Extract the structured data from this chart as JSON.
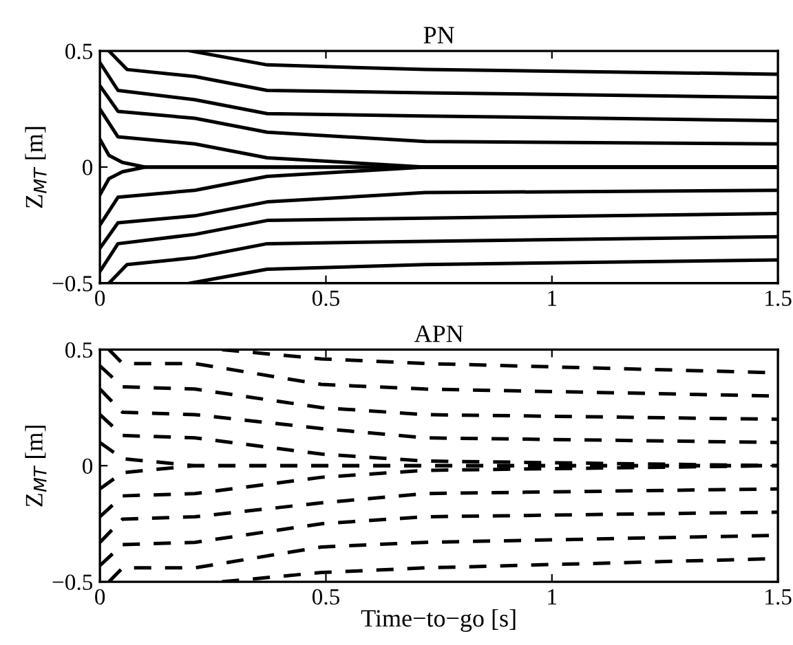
{
  "chart_data": [
    {
      "type": "line",
      "title": "PN",
      "ylabel": "Z$_{MT}$ [m]",
      "line_style": "solid",
      "xlim": [
        0,
        1.5
      ],
      "ylim": [
        -0.5,
        0.5
      ],
      "xticks": [
        0,
        0.5,
        1,
        1.5
      ],
      "yticks": [
        {
          "value": -0.5,
          "label": "−0.5"
        },
        0,
        0.5
      ],
      "grid": false,
      "series": [
        {
          "color": "#000000",
          "x": [
            0.2,
            0.37,
            0.72,
            1.5
          ],
          "values": [
            0.5,
            0.44,
            0.42,
            0.4
          ]
        },
        {
          "color": "#000000",
          "x": [
            0.02,
            0.06,
            0.21,
            0.37,
            0.72,
            1.5
          ],
          "values": [
            0.5,
            0.42,
            0.39,
            0.33,
            0.32,
            0.3
          ]
        },
        {
          "color": "#000000",
          "x": [
            0,
            0.04,
            0.21,
            0.37,
            0.72,
            1.5
          ],
          "values": [
            0.45,
            0.33,
            0.29,
            0.23,
            0.22,
            0.2
          ]
        },
        {
          "color": "#000000",
          "x": [
            0,
            0.04,
            0.21,
            0.37,
            0.72,
            1.5
          ],
          "values": [
            0.35,
            0.24,
            0.21,
            0.15,
            0.11,
            0.1
          ]
        },
        {
          "color": "#000000",
          "x": [
            0,
            0.04,
            0.21,
            0.37,
            0.72,
            1.5
          ],
          "values": [
            0.25,
            0.13,
            0.1,
            0.04,
            0.0,
            0.0
          ]
        },
        {
          "color": "#000000",
          "x": [
            0,
            0.02,
            0.05,
            0.1,
            1.5
          ],
          "values": [
            0.12,
            0.05,
            0.02,
            0,
            0
          ]
        },
        {
          "color": "#000000",
          "x": [
            0,
            0.02,
            0.05,
            0.1,
            1.5
          ],
          "values": [
            -0.12,
            -0.05,
            -0.02,
            0,
            0
          ]
        },
        {
          "color": "#000000",
          "x": [
            0,
            0.04,
            0.21,
            0.37,
            0.72,
            1.5
          ],
          "values": [
            -0.25,
            -0.13,
            -0.1,
            -0.04,
            0.0,
            0.0
          ]
        },
        {
          "color": "#000000",
          "x": [
            0,
            0.04,
            0.21,
            0.37,
            0.72,
            1.5
          ],
          "values": [
            -0.35,
            -0.24,
            -0.21,
            -0.15,
            -0.11,
            -0.1
          ]
        },
        {
          "color": "#000000",
          "x": [
            0,
            0.04,
            0.21,
            0.37,
            0.72,
            1.5
          ],
          "values": [
            -0.45,
            -0.33,
            -0.29,
            -0.23,
            -0.22,
            -0.2
          ]
        },
        {
          "color": "#000000",
          "x": [
            0.02,
            0.06,
            0.21,
            0.37,
            0.72,
            1.5
          ],
          "values": [
            -0.5,
            -0.42,
            -0.39,
            -0.33,
            -0.32,
            -0.3
          ]
        },
        {
          "color": "#000000",
          "x": [
            0.2,
            0.37,
            0.72,
            1.5
          ],
          "values": [
            -0.5,
            -0.44,
            -0.42,
            -0.4
          ]
        }
      ]
    },
    {
      "type": "line",
      "title": "APN",
      "ylabel": "Z$_{MT}$ [m]",
      "xlabel": "Time−to−go [s]",
      "line_style": "dashed",
      "xlim": [
        0,
        1.5
      ],
      "ylim": [
        -0.5,
        0.5
      ],
      "xticks": [
        0,
        0.5,
        1,
        1.5
      ],
      "yticks": [
        {
          "value": -0.5,
          "label": "−0.5"
        },
        0,
        0.5
      ],
      "grid": false,
      "series": [
        {
          "color": "#000000",
          "x": [
            0.27,
            0.49,
            0.72,
            1.5
          ],
          "values": [
            0.5,
            0.46,
            0.44,
            0.4
          ]
        },
        {
          "color": "#000000",
          "x": [
            0.02,
            0.05,
            0.21,
            0.49,
            0.72,
            1.5
          ],
          "values": [
            0.5,
            0.44,
            0.44,
            0.35,
            0.33,
            0.3
          ]
        },
        {
          "color": "#000000",
          "x": [
            0,
            0.05,
            0.21,
            0.49,
            0.72,
            1.5
          ],
          "values": [
            0.43,
            0.34,
            0.33,
            0.25,
            0.22,
            0.2
          ]
        },
        {
          "color": "#000000",
          "x": [
            0,
            0.05,
            0.21,
            0.49,
            0.72,
            1.5
          ],
          "values": [
            0.33,
            0.23,
            0.22,
            0.16,
            0.12,
            0.1
          ]
        },
        {
          "color": "#000000",
          "x": [
            0,
            0.05,
            0.21,
            0.49,
            0.72,
            1.5
          ],
          "values": [
            0.22,
            0.13,
            0.12,
            0.05,
            0.02,
            0
          ]
        },
        {
          "color": "#000000",
          "x": [
            0,
            0.05,
            0.21,
            1.5
          ],
          "values": [
            0.1,
            0.03,
            0,
            0
          ]
        },
        {
          "color": "#000000",
          "x": [
            0,
            0.05,
            0.21,
            1.5
          ],
          "values": [
            -0.1,
            -0.03,
            0,
            0
          ]
        },
        {
          "color": "#000000",
          "x": [
            0,
            0.05,
            0.21,
            0.49,
            0.72,
            1.5
          ],
          "values": [
            -0.22,
            -0.13,
            -0.12,
            -0.05,
            -0.02,
            0
          ]
        },
        {
          "color": "#000000",
          "x": [
            0,
            0.05,
            0.21,
            0.49,
            0.72,
            1.5
          ],
          "values": [
            -0.33,
            -0.23,
            -0.22,
            -0.16,
            -0.12,
            -0.1
          ]
        },
        {
          "color": "#000000",
          "x": [
            0,
            0.05,
            0.21,
            0.49,
            0.72,
            1.5
          ],
          "values": [
            -0.43,
            -0.34,
            -0.33,
            -0.25,
            -0.22,
            -0.2
          ]
        },
        {
          "color": "#000000",
          "x": [
            0.02,
            0.05,
            0.21,
            0.49,
            0.72,
            1.5
          ],
          "values": [
            -0.5,
            -0.44,
            -0.44,
            -0.35,
            -0.33,
            -0.3
          ]
        },
        {
          "color": "#000000",
          "x": [
            0.27,
            0.49,
            0.72,
            1.5
          ],
          "values": [
            -0.5,
            -0.46,
            -0.44,
            -0.4
          ]
        }
      ]
    }
  ]
}
